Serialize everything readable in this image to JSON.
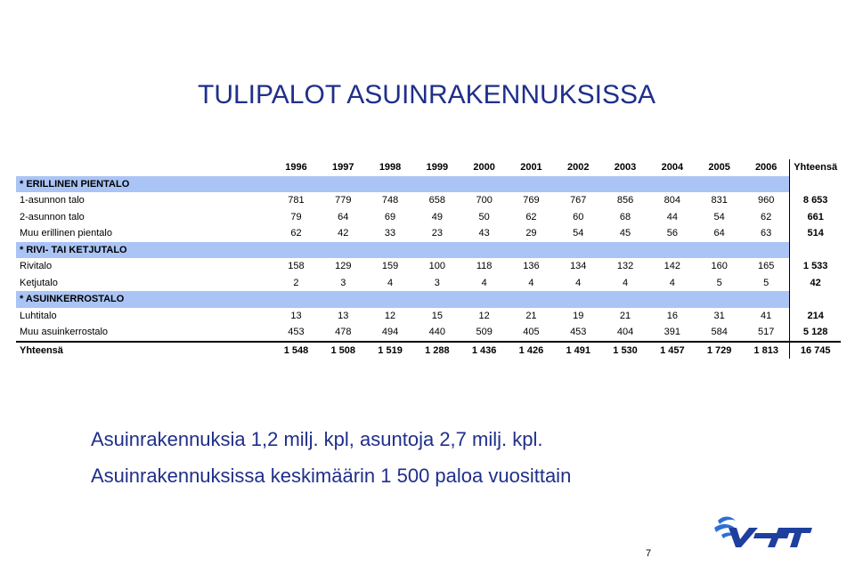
{
  "slide": {
    "title": "TULIPALOT ASUINRAKENNUKSISSA",
    "notes": [
      "Asuinrakennuksia 1,2 milj. kpl, asuntoja 2,7 milj. kpl.",
      "Asuinrakennuksissa keskimäärin 1 500 paloa vuosittain"
    ],
    "page_number": "7",
    "logo_text": "VTT",
    "colors": {
      "title": "#1f2f8a",
      "section_band": "#aac4f5"
    }
  },
  "table": {
    "years": [
      "1996",
      "1997",
      "1998",
      "1999",
      "2000",
      "2001",
      "2002",
      "2003",
      "2004",
      "2005",
      "2006"
    ],
    "total_header": "Yhteensä",
    "sections": [
      {
        "title": "* ERILLINEN PIENTALO",
        "rows": [
          {
            "label": "1-asunnon talo",
            "values": [
              "781",
              "779",
              "748",
              "658",
              "700",
              "769",
              "767",
              "856",
              "804",
              "831",
              "960"
            ],
            "total": "8 653"
          },
          {
            "label": "2-asunnon talo",
            "values": [
              "79",
              "64",
              "69",
              "49",
              "50",
              "62",
              "60",
              "68",
              "44",
              "54",
              "62"
            ],
            "total": "661"
          },
          {
            "label": "Muu erillinen pientalo",
            "values": [
              "62",
              "42",
              "33",
              "23",
              "43",
              "29",
              "54",
              "45",
              "56",
              "64",
              "63"
            ],
            "total": "514"
          }
        ]
      },
      {
        "title": "* RIVI- TAI KETJUTALO",
        "rows": [
          {
            "label": "Rivitalo",
            "values": [
              "158",
              "129",
              "159",
              "100",
              "118",
              "136",
              "134",
              "132",
              "142",
              "160",
              "165"
            ],
            "total": "1 533"
          },
          {
            "label": "Ketjutalo",
            "values": [
              "2",
              "3",
              "4",
              "3",
              "4",
              "4",
              "4",
              "4",
              "4",
              "5",
              "5"
            ],
            "total": "42"
          }
        ]
      },
      {
        "title": "* ASUINKERROSTALO",
        "rows": [
          {
            "label": "Luhtitalo",
            "values": [
              "13",
              "13",
              "12",
              "15",
              "12",
              "21",
              "19",
              "21",
              "16",
              "31",
              "41"
            ],
            "total": "214"
          },
          {
            "label": "Muu asuinkerrostalo",
            "values": [
              "453",
              "478",
              "494",
              "440",
              "509",
              "405",
              "453",
              "404",
              "391",
              "584",
              "517"
            ],
            "total": "5 128"
          }
        ]
      }
    ],
    "grand_total": {
      "label": "Yhteensä",
      "values": [
        "1 548",
        "1 508",
        "1 519",
        "1 288",
        "1 436",
        "1 426",
        "1 491",
        "1 530",
        "1 457",
        "1 729",
        "1 813"
      ],
      "total": "16 745"
    }
  }
}
